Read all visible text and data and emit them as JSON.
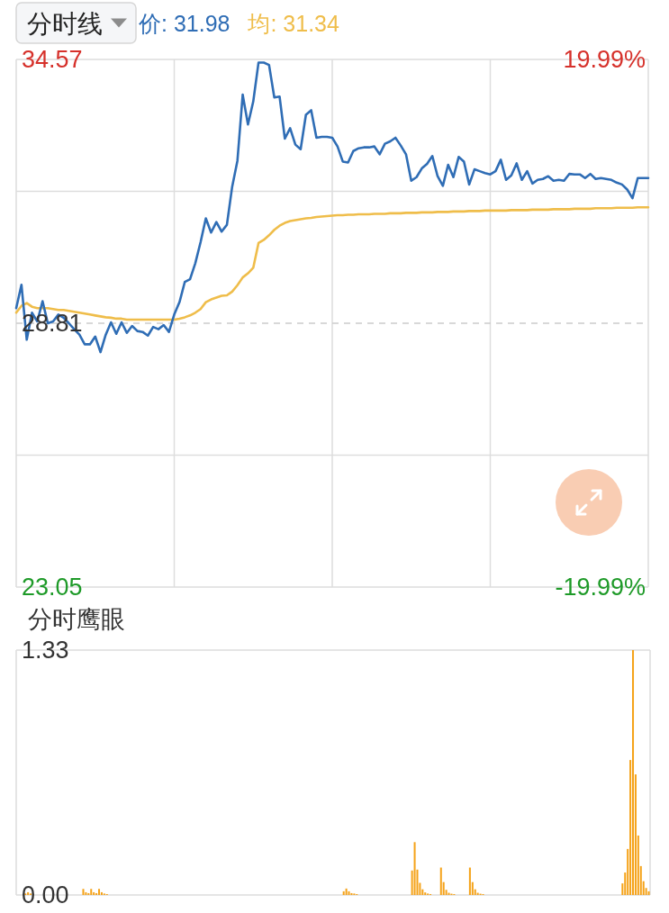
{
  "chart_data": [
    {
      "type": "line",
      "title": "分时线",
      "categories": [
        null,
        null,
        null,
        null,
        null,
        null,
        null,
        null,
        null,
        null,
        null,
        null,
        null,
        null,
        null,
        null,
        null,
        null,
        null,
        null,
        null,
        null,
        null,
        null,
        null,
        null,
        null,
        null,
        null,
        null,
        null,
        null,
        null,
        null,
        null,
        null,
        null,
        null,
        null,
        null,
        null,
        null,
        null,
        null,
        null,
        null,
        null,
        null,
        null,
        null,
        null,
        null,
        null,
        null,
        null,
        null,
        null,
        null,
        null,
        null,
        null,
        null,
        null,
        null,
        null,
        null,
        null,
        null,
        null,
        null,
        null,
        null,
        null,
        null,
        null,
        null,
        null,
        null,
        null,
        null,
        null,
        null,
        null,
        null,
        null,
        null,
        null,
        null,
        null,
        null,
        null,
        null,
        null,
        null,
        null,
        null,
        null,
        null,
        null,
        null,
        null,
        null,
        null,
        null,
        null,
        null,
        null,
        null,
        null,
        null,
        null,
        null,
        null,
        null,
        null,
        null,
        null,
        null,
        null,
        null,
        null
      ],
      "series": [
        {
          "name": "价: 31.98",
          "color": "#2f6db5",
          "values": [
            29.14,
            29.65,
            28.45,
            29.04,
            28.85,
            29.29,
            28.81,
            28.85,
            29.0,
            28.93,
            28.81,
            28.68,
            28.56,
            28.35,
            28.35,
            28.52,
            28.18,
            28.56,
            28.83,
            28.58,
            28.83,
            28.6,
            28.75,
            28.64,
            28.62,
            28.54,
            28.73,
            28.68,
            28.77,
            28.62,
            29.0,
            29.27,
            29.71,
            29.77,
            30.12,
            30.58,
            31.1,
            30.79,
            31.02,
            30.81,
            30.96,
            31.79,
            32.36,
            33.8,
            33.15,
            33.65,
            34.5,
            34.5,
            34.45,
            33.74,
            33.76,
            32.84,
            33.07,
            32.71,
            32.61,
            33.36,
            33.46,
            32.86,
            32.88,
            32.88,
            32.86,
            32.67,
            32.34,
            32.32,
            32.57,
            32.63,
            32.65,
            32.65,
            32.67,
            32.5,
            32.73,
            32.78,
            32.86,
            32.69,
            32.5,
            31.92,
            32.0,
            32.19,
            32.29,
            32.46,
            32.02,
            31.81,
            32.27,
            32.0,
            32.44,
            32.34,
            31.84,
            32.17,
            32.13,
            32.09,
            32.06,
            32.13,
            32.38,
            31.94,
            32.04,
            32.3,
            31.94,
            32.13,
            31.86,
            31.94,
            31.96,
            32.02,
            31.92,
            31.94,
            31.92,
            32.07,
            32.06,
            32.06,
            31.98,
            32.07,
            31.96,
            31.98,
            31.96,
            31.94,
            31.88,
            31.84,
            31.73,
            31.54,
            31.98,
            31.98,
            31.98
          ]
        },
        {
          "name": "均: 31.34",
          "color": "#efbd4a",
          "values": [
            29.04,
            29.19,
            29.25,
            29.17,
            29.14,
            29.14,
            29.14,
            29.12,
            29.1,
            29.1,
            29.08,
            29.06,
            29.04,
            29.02,
            29.0,
            28.98,
            28.96,
            28.94,
            28.93,
            28.91,
            28.91,
            28.89,
            28.89,
            28.89,
            28.89,
            28.89,
            28.89,
            28.89,
            28.89,
            28.89,
            28.89,
            28.91,
            28.94,
            28.98,
            29.04,
            29.12,
            29.27,
            29.33,
            29.37,
            29.41,
            29.42,
            29.5,
            29.64,
            29.81,
            29.9,
            30.02,
            30.56,
            30.63,
            30.73,
            30.85,
            30.94,
            31.0,
            31.04,
            31.06,
            31.08,
            31.1,
            31.11,
            31.13,
            31.14,
            31.15,
            31.16,
            31.17,
            31.17,
            31.18,
            31.18,
            31.19,
            31.19,
            31.19,
            31.2,
            31.2,
            31.2,
            31.21,
            31.21,
            31.21,
            31.22,
            31.22,
            31.22,
            31.23,
            31.23,
            31.23,
            31.24,
            31.24,
            31.24,
            31.25,
            31.25,
            31.25,
            31.26,
            31.26,
            31.26,
            31.27,
            31.27,
            31.27,
            31.27,
            31.27,
            31.28,
            31.28,
            31.28,
            31.28,
            31.29,
            31.29,
            31.29,
            31.29,
            31.3,
            31.3,
            31.3,
            31.3,
            31.31,
            31.31,
            31.31,
            31.31,
            31.32,
            31.32,
            31.32,
            31.32,
            31.33,
            31.33,
            31.33,
            31.33,
            31.34,
            31.34,
            31.34
          ]
        }
      ],
      "ylim": [
        23.05,
        34.57
      ],
      "yticks": [
        23.05,
        {
          "value": 25.93,
          "label": null
        },
        28.81,
        {
          "value": 31.69,
          "label": null
        },
        34.57
      ],
      "y2lim": [
        -19.99,
        19.99
      ],
      "y2ticks": [
        {
          "value": -19.99,
          "label": "-19.99%"
        },
        {
          "value": 19.99,
          "label": "19.99%"
        }
      ],
      "ref_lines": [
        {
          "axis": "y",
          "value": 28.81,
          "line_style": "dashed",
          "color": "#cccccc"
        }
      ],
      "grid": true,
      "legend": "top left"
    },
    {
      "type": "bar",
      "title": "分时鹰眼",
      "categories": [
        null,
        null,
        null,
        null,
        null,
        null,
        null,
        null,
        null,
        null,
        null,
        null,
        null,
        null,
        null,
        null,
        null,
        null,
        null,
        null,
        null,
        null,
        null,
        null,
        null,
        null,
        null,
        null,
        null,
        null,
        null,
        null,
        null,
        null,
        null,
        null,
        null,
        null,
        null,
        null,
        null,
        null,
        null,
        null,
        null,
        null,
        null,
        null,
        null,
        null,
        null,
        null,
        null,
        null,
        null,
        null,
        null,
        null,
        null,
        null,
        null,
        null,
        null,
        null,
        null,
        null,
        null,
        null,
        null,
        null,
        null,
        null,
        null,
        null,
        null,
        null,
        null,
        null,
        null,
        null,
        null,
        null,
        null,
        null,
        null,
        null,
        null,
        null,
        null,
        null,
        null,
        null,
        null,
        null,
        null,
        null,
        null,
        null,
        null,
        null,
        null,
        null,
        null,
        null,
        null,
        null,
        null,
        null,
        null,
        null,
        null,
        null,
        null,
        null,
        null,
        null,
        null,
        null,
        null,
        null,
        null,
        null,
        null,
        null,
        null,
        null,
        null,
        null,
        null,
        null,
        null,
        null,
        null,
        null,
        null,
        null,
        null,
        null,
        null,
        null,
        null,
        null,
        null,
        null,
        null,
        null,
        null,
        null,
        null,
        null,
        null,
        null,
        null,
        null,
        null,
        null,
        null,
        null,
        null,
        null,
        null,
        null,
        null,
        null,
        null,
        null,
        null,
        null,
        null,
        null,
        null,
        null,
        null,
        null,
        null,
        null,
        null,
        null,
        null,
        null,
        null,
        null,
        null,
        null,
        null,
        null,
        null,
        null,
        null,
        null,
        null,
        null,
        null,
        null,
        null,
        null,
        null,
        null,
        null,
        null,
        null,
        null,
        null,
        null,
        null,
        null,
        null,
        null,
        null,
        null,
        null,
        null,
        null,
        null,
        null,
        null,
        null,
        null,
        null,
        null,
        null,
        null,
        null,
        null,
        null,
        null,
        null,
        null,
        null,
        null,
        null,
        null,
        null,
        null,
        null,
        null,
        null,
        null,
        null,
        null,
        null
      ],
      "values": [
        null,
        null,
        null,
        0.008,
        0.015,
        0.008,
        null,
        null,
        null,
        null,
        null,
        null,
        null,
        null,
        null,
        null,
        null,
        null,
        null,
        null,
        null,
        null,
        null,
        null,
        null,
        0.033,
        0.015,
        0.01,
        0.033,
        0.015,
        0.01,
        0.033,
        0.015,
        0.008,
        0.005,
        null,
        null,
        null,
        null,
        null,
        null,
        null,
        null,
        null,
        null,
        null,
        null,
        null,
        null,
        null,
        null,
        null,
        null,
        null,
        null,
        null,
        null,
        null,
        null,
        null,
        null,
        null,
        null,
        null,
        null,
        null,
        null,
        null,
        null,
        null,
        null,
        null,
        null,
        null,
        null,
        null,
        null,
        null,
        null,
        null,
        null,
        null,
        null,
        null,
        null,
        null,
        null,
        null,
        null,
        null,
        null,
        null,
        null,
        null,
        null,
        null,
        null,
        null,
        null,
        null,
        null,
        null,
        null,
        null,
        null,
        null,
        null,
        null,
        null,
        null,
        null,
        null,
        null,
        null,
        null,
        null,
        null,
        null,
        null,
        null,
        null,
        null,
        null,
        null,
        0.02,
        0.035,
        0.02,
        0.01,
        0.008,
        0.005,
        null,
        null,
        null,
        null,
        null,
        null,
        null,
        null,
        null,
        null,
        null,
        null,
        null,
        null,
        null,
        null,
        null,
        null,
        null,
        null,
        0.133,
        0.287,
        0.138,
        0.066,
        0.031,
        0.014,
        0.008,
        0.005,
        null,
        null,
        null,
        0.149,
        0.07,
        0.028,
        0.012,
        0.007,
        0.005,
        null,
        null,
        null,
        null,
        null,
        0.149,
        0.07,
        0.031,
        0.012,
        0.007,
        0.005,
        null,
        null,
        null,
        null,
        null,
        null,
        null,
        null,
        null,
        null,
        null,
        null,
        null,
        null,
        null,
        null,
        null,
        null,
        null,
        null,
        null,
        null,
        null,
        null,
        null,
        null,
        null,
        null,
        null,
        null,
        null,
        null,
        null,
        null,
        null,
        null,
        null,
        null,
        null,
        null,
        null,
        null,
        null,
        null,
        null,
        null,
        null,
        null,
        null,
        null,
        null,
        null,
        0.063,
        0.122,
        0.25,
        0.733,
        1.33,
        0.655,
        0.323,
        0.157,
        0.075,
        0.038,
        0.02
      ],
      "color": "#f5a31a",
      "ylim": [
        0,
        1.33
      ],
      "yticks": [
        {
          "value": 0,
          "label": "0.00"
        },
        {
          "value": 1.33,
          "label": "1.33"
        }
      ]
    }
  ]
}
